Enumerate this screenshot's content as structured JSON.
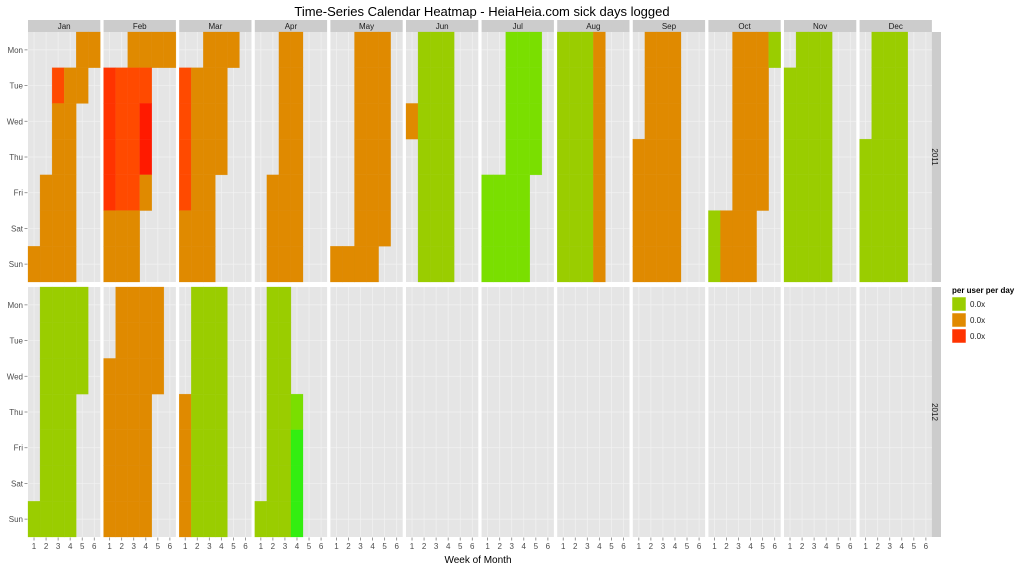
{
  "chart_data": {
    "type": "heatmap",
    "title": "Time-Series Calendar Heatmap - HeiaHeia.com sick days logged",
    "xlabel": "Week of Month",
    "ylabel": "",
    "months": [
      "Jan",
      "Feb",
      "Mar",
      "Apr",
      "May",
      "Jun",
      "Jul",
      "Aug",
      "Sep",
      "Oct",
      "Nov",
      "Dec"
    ],
    "years": [
      "2011",
      "2012"
    ],
    "weekdays": [
      "Mon",
      "Tue",
      "Wed",
      "Thu",
      "Fri",
      "Sat",
      "Sun"
    ],
    "week_ticks": [
      "1",
      "2",
      "3",
      "4",
      "5",
      "6"
    ],
    "legend": {
      "title": "per user per day",
      "entries": [
        {
          "label": "0.0x",
          "color": "#9ACD00"
        },
        {
          "label": "0.0x",
          "color": "#E08A00"
        },
        {
          "label": "0.0x",
          "color": "#FF3300"
        }
      ]
    },
    "colors": {
      "panel_bg": "#E5E5E5",
      "grid": "#F2F2F2",
      "strip_bg": "#CCCCCC",
      "low": "#9ACD00",
      "mid": "#E08A00",
      "high": "#FF3300",
      "very_low": "#33EE11"
    },
    "level_codes": {
      "a": "#33EE11",
      "b": "#7ADF00",
      "g": "#9ACD00",
      "h": "#B0BE00",
      "o": "#E08A00",
      "p": "#E8830A",
      "q": "#F07000",
      "r": "#FF4A00",
      "s": "#FF3300",
      "t": "#FF1A00"
    },
    "grids": {
      "2011": {
        "Jan": [
          "....oo",
          "..roo.",
          "..oo..",
          "..oo..",
          ".ooo..",
          ".ooo..",
          "oooo.."
        ],
        "Feb": [
          "..oooo",
          "srrr..",
          "srrt..",
          "srrt..",
          "srro..",
          "ooo...",
          "ooo..."
        ],
        "Mar": [
          "..ooo.",
          "rooo..",
          "rooo..",
          "rooo..",
          "roo...",
          "ooo...",
          "ooo..."
        ],
        "Apr": [
          "..oo..",
          "..oo..",
          "..oo..",
          "..oo..",
          ".ooo..",
          ".ooo..",
          ".ooo.."
        ],
        "May": [
          "..ooo.",
          "..ooo.",
          "..ooo.",
          "..ooo.",
          "..ooo.",
          "..ooo.",
          "oooo.."
        ],
        "Jun": [
          ".ggg..",
          ".ggg..",
          "oggg..",
          ".ggg..",
          ".ggg..",
          ".ggg..",
          ".ggg.."
        ],
        "Jul": [
          "..bbb.",
          "..bbb.",
          "..bbb.",
          "..bbb.",
          "bbbb..",
          "bbbb..",
          "bbbb.."
        ],
        "Aug": [
          "gggo..",
          "gggo..",
          "gggo..",
          "gggo..",
          "gggo..",
          "gggo..",
          "gggo.."
        ],
        "Sep": [
          ".ooo..",
          ".ooo..",
          ".ooo..",
          "oooo..",
          "oooo..",
          "oooo..",
          "oooo.."
        ],
        "Oct": [
          "..ooog",
          "..ooo.",
          "..ooo.",
          "..ooo.",
          "..ooo.",
          "gooo..",
          "gooo.."
        ],
        "Nov": [
          ".ggg..",
          "gggg..",
          "gggg..",
          "gggg..",
          "gggg..",
          "gggg..",
          "gggg.."
        ],
        "Dec": [
          ".ggg..",
          ".ggg..",
          ".ggg..",
          "gggg..",
          "gggg..",
          "gggg..",
          "gggg.."
        ]
      },
      "2012": {
        "Jan": [
          ".gggg.",
          ".gggg.",
          ".gggg.",
          ".ggg..",
          ".ggg..",
          ".ggg..",
          "gggg.."
        ],
        "Feb": [
          ".oooo.",
          ".oooo.",
          "ooooo.",
          "oooo..",
          "oooo..",
          "oooo..",
          "oooo.."
        ],
        "Mar": [
          ".ggg..",
          ".ggg..",
          ".ggg..",
          "oggg..",
          "oggg..",
          "oggg..",
          "oggg.."
        ],
        "Apr": [
          ".gg...",
          ".gg...",
          ".gg...",
          ".ggb..",
          ".gga..",
          ".gga..",
          "ggga.."
        ]
      }
    },
    "ylim": [
      0,
      1
    ],
    "grid": true,
    "legend_position": "right"
  }
}
